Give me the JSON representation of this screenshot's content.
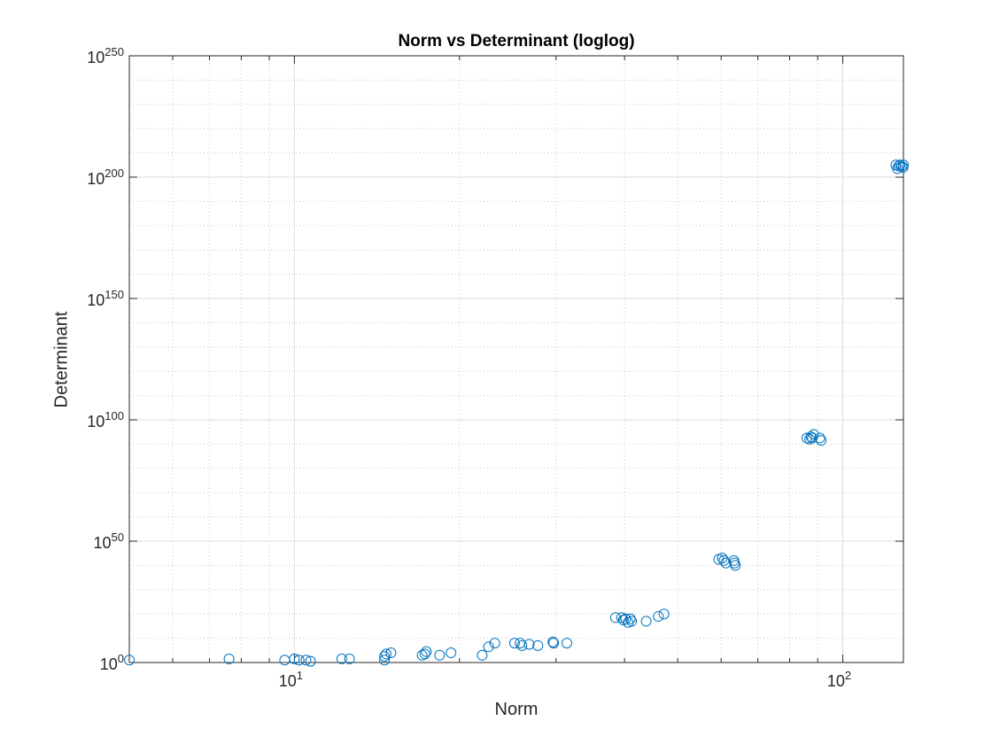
{
  "chart_data": {
    "type": "scatter",
    "title": "Norm vs Determinant (loglog)",
    "xlabel": "Norm",
    "ylabel": "Determinant",
    "xscale": "log",
    "yscale": "log",
    "xlim": [
      5,
      129
    ],
    "ylim_exponent": [
      0,
      250
    ],
    "x_ticks": [
      {
        "value": 10,
        "base": "10",
        "exp": "1"
      },
      {
        "value": 100,
        "base": "10",
        "exp": "2"
      }
    ],
    "y_ticks": [
      {
        "exponent": 0,
        "base": "10",
        "exp": "0"
      },
      {
        "exponent": 50,
        "base": "10",
        "exp": "50"
      },
      {
        "exponent": 100,
        "base": "10",
        "exp": "100"
      },
      {
        "exponent": 150,
        "base": "10",
        "exp": "150"
      },
      {
        "exponent": 200,
        "base": "10",
        "exp": "200"
      },
      {
        "exponent": 250,
        "base": "10",
        "exp": "250"
      }
    ],
    "grid": true,
    "minor_grid": true,
    "marker": "circle-open",
    "color": "#0072BD",
    "series": [
      {
        "points_note": "x = Norm, y = log10(Determinant)",
        "points": [
          [
            5.0,
            1
          ],
          [
            7.6,
            1.5
          ],
          [
            9.6,
            1
          ],
          [
            10.0,
            1.5
          ],
          [
            10.2,
            1
          ],
          [
            10.5,
            1
          ],
          [
            10.7,
            0.5
          ],
          [
            12.2,
            1.5
          ],
          [
            12.6,
            1.5
          ],
          [
            14.6,
            1
          ],
          [
            14.6,
            2.5
          ],
          [
            14.7,
            3.5
          ],
          [
            15.0,
            4
          ],
          [
            17.1,
            3
          ],
          [
            17.3,
            3.5
          ],
          [
            17.4,
            4.5
          ],
          [
            18.4,
            3
          ],
          [
            19.3,
            4
          ],
          [
            22.0,
            3
          ],
          [
            22.6,
            6.5
          ],
          [
            23.2,
            8
          ],
          [
            25.2,
            8
          ],
          [
            25.8,
            8
          ],
          [
            26.0,
            7
          ],
          [
            26.8,
            7.5
          ],
          [
            27.8,
            7
          ],
          [
            29.6,
            8.5
          ],
          [
            29.7,
            8
          ],
          [
            31.4,
            8
          ],
          [
            38.5,
            18.5
          ],
          [
            39.5,
            18.5
          ],
          [
            39.8,
            17.5
          ],
          [
            40.2,
            18
          ],
          [
            40.6,
            16.5
          ],
          [
            41.0,
            18
          ],
          [
            41.2,
            17
          ],
          [
            43.8,
            17
          ],
          [
            46.1,
            19
          ],
          [
            47.2,
            20
          ],
          [
            59.4,
            42.5
          ],
          [
            60.3,
            43
          ],
          [
            60.7,
            42
          ],
          [
            61.2,
            41
          ],
          [
            63.3,
            42
          ],
          [
            63.5,
            41
          ],
          [
            63.7,
            40
          ],
          [
            86.0,
            92.5
          ],
          [
            87.0,
            92
          ],
          [
            87.5,
            93
          ],
          [
            88.0,
            92.5
          ],
          [
            88.5,
            94
          ],
          [
            90.8,
            92.5
          ],
          [
            91.3,
            91.5
          ],
          [
            125.0,
            205
          ],
          [
            125.8,
            203.5
          ],
          [
            126.5,
            204.5
          ],
          [
            127.2,
            205
          ],
          [
            128.0,
            204.5
          ],
          [
            128.8,
            204
          ],
          [
            129.5,
            205
          ]
        ]
      }
    ]
  }
}
